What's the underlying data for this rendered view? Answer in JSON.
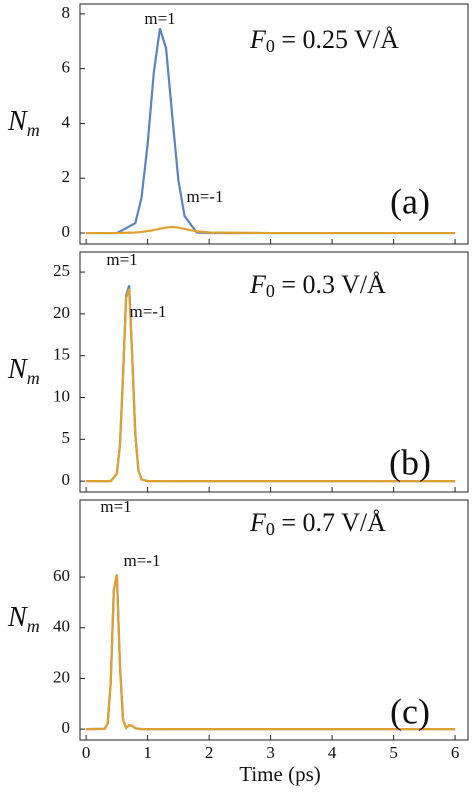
{
  "chart_data": [
    {
      "type": "line",
      "title": "F",
      "title_subscript": "0",
      "title_rest": " = 0.25 V/Å",
      "panel_label": "(a)",
      "y_label": "N",
      "y_label_subscript": "m",
      "x": [
        0,
        0.5,
        0.8,
        0.9,
        1.0,
        1.1,
        1.2,
        1.3,
        1.4,
        1.5,
        1.6,
        1.8,
        2.0,
        3,
        4,
        5,
        6
      ],
      "series": [
        {
          "name": "m=1",
          "color": "#5b84bd",
          "values": [
            0,
            0,
            0.36,
            1.28,
            3.25,
            5.85,
            7.47,
            6.74,
            4.28,
            1.93,
            0.62,
            0.02,
            0,
            0,
            0,
            0,
            0
          ]
        },
        {
          "name": "m=-1",
          "color": "#e0a030",
          "values": [
            0,
            0,
            0.02,
            0.04,
            0.07,
            0.11,
            0.16,
            0.2,
            0.22,
            0.2,
            0.15,
            0.06,
            0.02,
            0,
            0,
            0,
            0
          ]
        }
      ],
      "xlim": [
        -0.1,
        6.21
      ],
      "xticks": [
        0,
        1,
        2,
        3,
        4,
        5,
        6
      ],
      "ylim": [
        -0.4,
        8.36
      ],
      "yticks": [
        0,
        2,
        4,
        6,
        8
      ]
    },
    {
      "type": "line",
      "title": "F",
      "title_subscript": "0",
      "title_rest": " = 0.3 V/Å",
      "panel_label": "(b)",
      "y_label": "N",
      "y_label_subscript": "m",
      "x": [
        0,
        0.3,
        0.4,
        0.5,
        0.55,
        0.6,
        0.65,
        0.7,
        0.75,
        0.8,
        0.85,
        0.9,
        1.0,
        2,
        3,
        4,
        5,
        6
      ],
      "series": [
        {
          "name": "m=1",
          "color": "#5b84bd",
          "values": [
            0,
            0,
            0,
            0.9,
            4.4,
            12.7,
            22.2,
            23.4,
            14.8,
            5.6,
            1.3,
            0.2,
            0,
            0,
            0,
            0,
            0,
            0
          ]
        },
        {
          "name": "m=-1",
          "color": "#e0a030",
          "values": [
            0,
            0,
            0,
            0.9,
            4.3,
            12.5,
            21.9,
            23.0,
            14.6,
            5.5,
            1.3,
            0.2,
            0,
            0,
            0,
            0,
            0,
            0
          ]
        }
      ],
      "xlim": [
        -0.1,
        6.21
      ],
      "xticks": [
        0,
        1,
        2,
        3,
        4,
        5,
        6
      ],
      "ylim": [
        -1.3,
        27.4
      ],
      "yticks": [
        0,
        5,
        10,
        15,
        20,
        25
      ]
    },
    {
      "type": "line",
      "title": "F",
      "title_subscript": "0",
      "title_rest": " = 0.7 V/Å",
      "panel_label": "(c)",
      "y_label": "N",
      "y_label_subscript": "m",
      "x_label": "Time (ps)",
      "x": [
        0,
        0.3,
        0.35,
        0.4,
        0.45,
        0.5,
        0.55,
        0.6,
        0.65,
        0.7,
        0.75,
        0.8,
        0.9,
        2,
        3,
        4,
        5,
        6
      ],
      "series": [
        {
          "name": "m=1",
          "color": "#5b84bd",
          "values": [
            0,
            0.1,
            2.2,
            18.4,
            55,
            61,
            24.8,
            3.7,
            0.5,
            1.5,
            1.3,
            0.3,
            0,
            0,
            0,
            0,
            0,
            0
          ]
        },
        {
          "name": "m=-1",
          "color": "#e0a030",
          "values": [
            0,
            0.1,
            2.2,
            18.4,
            55,
            61,
            24.8,
            3.7,
            0.5,
            1.5,
            1.3,
            0.3,
            0,
            0,
            0,
            0,
            0,
            0
          ]
        }
      ],
      "xlim": [
        -0.1,
        6.21
      ],
      "xticks": [
        0,
        1,
        2,
        3,
        4,
        5,
        6
      ],
      "ylim": [
        -4.3,
        90.4
      ],
      "yticks": [
        0,
        20,
        40,
        60
      ]
    }
  ]
}
